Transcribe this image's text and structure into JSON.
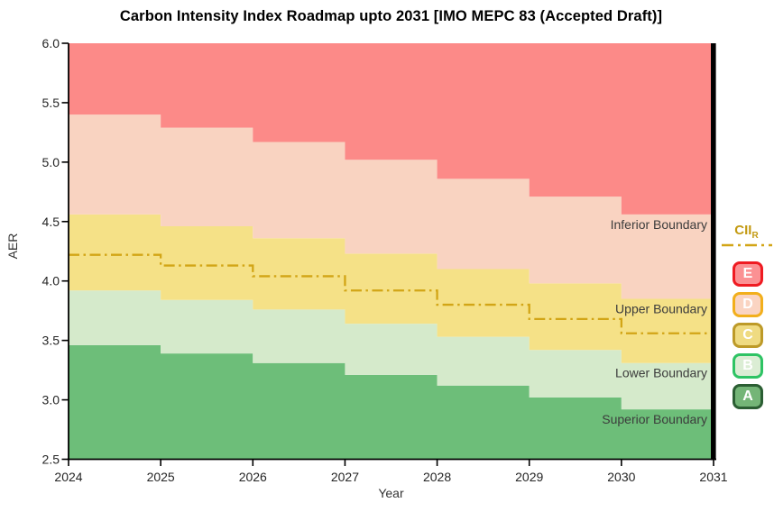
{
  "chart_data": {
    "type": "area",
    "title": "Carbon Intensity Index Roadmap upto 2031 [IMO MEPC 83 (Accepted Draft)]",
    "xlabel": "Year",
    "ylabel": "AER",
    "x": [
      2024,
      2025,
      2026,
      2027,
      2028,
      2029,
      2030,
      2031
    ],
    "xlim": [
      2024,
      2031
    ],
    "ylim": [
      2.5,
      6.0
    ],
    "step": "post",
    "grid": false,
    "x_ticks": [
      "2024",
      "2025",
      "2026",
      "2027",
      "2028",
      "2029",
      "2030",
      "2031"
    ],
    "y_ticks": [
      "6.0",
      "5.5",
      "5.0",
      "4.5",
      "4.0",
      "3.5",
      "3.0",
      "2.5"
    ],
    "reference_line": {
      "name": "CII_R",
      "style": "dash-dot",
      "color": "#D2A516",
      "values": [
        4.22,
        4.13,
        4.04,
        3.92,
        3.8,
        3.68,
        3.56,
        3.56
      ]
    },
    "boundaries": [
      {
        "name": "Superior Boundary",
        "values": [
          3.46,
          3.39,
          3.31,
          3.21,
          3.12,
          3.02,
          2.92,
          2.92
        ]
      },
      {
        "name": "Lower Boundary",
        "values": [
          3.92,
          3.84,
          3.76,
          3.64,
          3.53,
          3.42,
          3.31,
          3.31
        ]
      },
      {
        "name": "Upper Boundary",
        "values": [
          4.56,
          4.46,
          4.36,
          4.23,
          4.1,
          3.98,
          3.85,
          3.85
        ]
      },
      {
        "name": "Inferior Boundary",
        "values": [
          5.4,
          5.29,
          5.17,
          5.02,
          4.86,
          4.71,
          4.56,
          4.56
        ]
      }
    ],
    "bands": [
      {
        "rating": "A",
        "color": "#6DBE79",
        "from": "ylim_bottom",
        "to": "Superior Boundary"
      },
      {
        "rating": "B",
        "color": "#D5EACB",
        "from": "Superior Boundary",
        "to": "Lower Boundary"
      },
      {
        "rating": "C",
        "color": "#F5E187",
        "from": "Lower Boundary",
        "to": "Upper Boundary"
      },
      {
        "rating": "D",
        "color": "#F9D3C1",
        "from": "Upper Boundary",
        "to": "Inferior Boundary"
      },
      {
        "rating": "E",
        "color": "#FC8A88",
        "from": "Inferior Boundary",
        "to": "ylim_top"
      }
    ],
    "annotations": [
      "Inferior Boundary",
      "Upper Boundary",
      "Lower Boundary",
      "Superior Boundary"
    ],
    "annotation_color": "#3C3C3C"
  },
  "legend": {
    "cii_label": "CII",
    "cii_sub": "R",
    "line_color": "#D2A516",
    "ratings": [
      {
        "letter": "E",
        "fill": "#FB9193",
        "border": "#EF1B22"
      },
      {
        "letter": "D",
        "fill": "#FAD4C2",
        "border": "#F2AF1C"
      },
      {
        "letter": "C",
        "fill": "#EFDB82",
        "border": "#BD9A28"
      },
      {
        "letter": "B",
        "fill": "#DBEDD4",
        "border": "#2EC364"
      },
      {
        "letter": "A",
        "fill": "#74B577",
        "border": "#2B5E33"
      }
    ]
  }
}
